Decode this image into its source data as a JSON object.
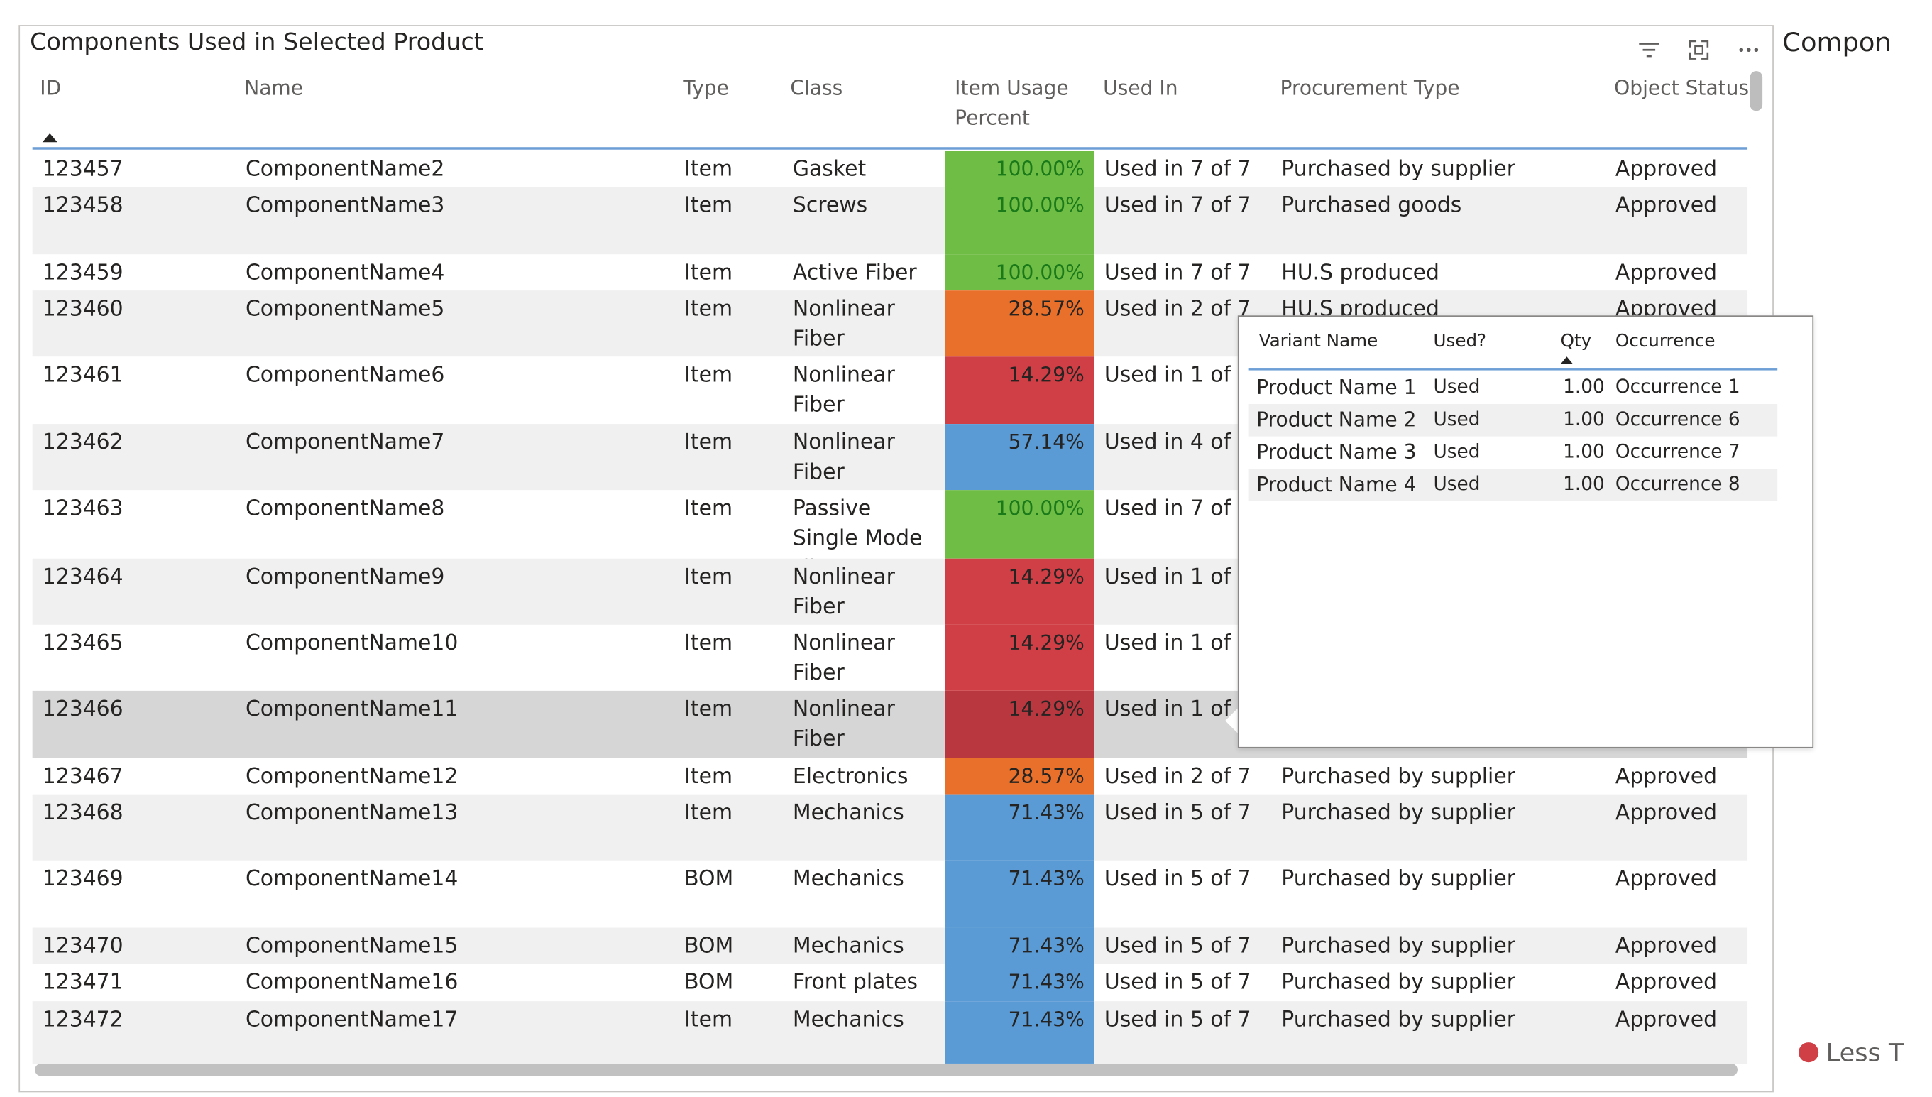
{
  "visual": {
    "title": "Components Used in Selected Product",
    "icons": [
      "filter-icon",
      "focus-mode-icon",
      "more-options-icon"
    ]
  },
  "columns": [
    {
      "id": "id",
      "label": "ID"
    },
    {
      "id": "name",
      "label": "Name"
    },
    {
      "id": "type",
      "label": "Type"
    },
    {
      "id": "class",
      "label": "Class"
    },
    {
      "id": "usage",
      "label": "Item Usage Percent"
    },
    {
      "id": "used_in",
      "label": "Used In"
    },
    {
      "id": "procurement",
      "label": "Procurement Type"
    },
    {
      "id": "status",
      "label": "Object Status"
    }
  ],
  "sort": {
    "column": "ID",
    "direction": "ascending"
  },
  "usage_colors": {
    "100.00%": "#70bd45",
    "57.14%": "#5b9bd5",
    "71.43%": "#5b9bd5",
    "28.57%": "#e8702a",
    "14.29%": "#d13f46"
  },
  "rows": [
    {
      "id": "123457",
      "name": "ComponentName2",
      "type": "Item",
      "class": "Gasket",
      "usage": "100.00%",
      "used_in": "Used in 7 of 7",
      "procurement": "Purchased by supplier",
      "status": "Approved"
    },
    {
      "id": "123458",
      "name": "ComponentName3",
      "type": "Item",
      "class": "Screws",
      "usage": "100.00%",
      "used_in": "Used in 7 of 7",
      "procurement": "Purchased goods",
      "status": "Approved"
    },
    {
      "id": "123459",
      "name": "ComponentName4",
      "type": "Item",
      "class": "Active Fiber",
      "usage": "100.00%",
      "used_in": "Used in 7 of 7",
      "procurement": "HU.S  produced",
      "status": "Approved"
    },
    {
      "id": "123460",
      "name": "ComponentName5",
      "type": "Item",
      "class": "Nonlinear Fiber",
      "usage": "28.57%",
      "used_in": "Used in 2 of 7",
      "procurement": "HU.S  produced",
      "status": "Approved"
    },
    {
      "id": "123461",
      "name": "ComponentName6",
      "type": "Item",
      "class": "Nonlinear Fiber",
      "usage": "14.29%",
      "used_in": "Used in 1 of 7",
      "procurement": "",
      "status": ""
    },
    {
      "id": "123462",
      "name": "ComponentName7",
      "type": "Item",
      "class": "Nonlinear Fiber",
      "usage": "57.14%",
      "used_in": "Used in 4 of 7",
      "procurement": "",
      "status": ""
    },
    {
      "id": "123463",
      "name": "ComponentName8",
      "type": "Item",
      "class": "Passive Single Mode Fiber",
      "usage": "100.00%",
      "used_in": "Used in 7 of 7",
      "procurement": "",
      "status": ""
    },
    {
      "id": "123464",
      "name": "ComponentName9",
      "type": "Item",
      "class": "Nonlinear Fiber",
      "usage": "14.29%",
      "used_in": "Used in 1 of 7",
      "procurement": "",
      "status": ""
    },
    {
      "id": "123465",
      "name": "ComponentName10",
      "type": "Item",
      "class": "Nonlinear Fiber",
      "usage": "14.29%",
      "used_in": "Used in 1 of 7",
      "procurement": "",
      "status": ""
    },
    {
      "id": "123466",
      "name": "ComponentName11",
      "type": "Item",
      "class": "Nonlinear Fiber",
      "usage": "14.29%",
      "used_in": "Used in 1 of 7",
      "procurement": "",
      "status": "",
      "selected": true
    },
    {
      "id": "123467",
      "name": "ComponentName12",
      "type": "Item",
      "class": "Electronics",
      "usage": "28.57%",
      "used_in": "Used in 2 of 7",
      "procurement": "Purchased by supplier",
      "status": "Approved"
    },
    {
      "id": "123468",
      "name": "ComponentName13",
      "type": "Item",
      "class": "Mechanics",
      "usage": "71.43%",
      "used_in": "Used in 5 of 7",
      "procurement": "Purchased by supplier",
      "status": "Approved"
    },
    {
      "id": "123469",
      "name": "ComponentName14",
      "type": "BOM",
      "class": "Mechanics",
      "usage": "71.43%",
      "used_in": "Used in 5 of 7",
      "procurement": "Purchased by supplier",
      "status": "Approved"
    },
    {
      "id": "123470",
      "name": "ComponentName15",
      "type": "BOM",
      "class": "Mechanics",
      "usage": "71.43%",
      "used_in": "Used in 5 of 7",
      "procurement": "Purchased by supplier",
      "status": "Approved"
    },
    {
      "id": "123471",
      "name": "ComponentName16",
      "type": "BOM",
      "class": "Front plates",
      "usage": "71.43%",
      "used_in": "Used in 5 of 7",
      "procurement": "Purchased by supplier",
      "status": "Approved"
    },
    {
      "id": "123472",
      "name": "ComponentName17",
      "type": "Item",
      "class": "Mechanics",
      "usage": "71.43%",
      "used_in": "Used in 5 of 7",
      "procurement": "Purchased by supplier",
      "status": "Approved"
    }
  ],
  "tooltip": {
    "columns": [
      "Variant Name",
      "Used?",
      "Qty",
      "Occurrence"
    ],
    "rows": [
      {
        "variant": "Product Name 1",
        "used": "Used",
        "qty": "1.00",
        "occurrence": "Occurrence 1"
      },
      {
        "variant": "Product Name 2",
        "used": "Used",
        "qty": "1.00",
        "occurrence": "Occurrence 6"
      },
      {
        "variant": "Product Name 3",
        "used": "Used",
        "qty": "1.00",
        "occurrence": "Occurrence 7"
      },
      {
        "variant": "Product Name 4",
        "used": "Used",
        "qty": "1.00",
        "occurrence": "Occurrence 8"
      }
    ]
  },
  "side": {
    "title": "Compon",
    "legend_label": "Less T",
    "legend_color": "#d13f46"
  }
}
